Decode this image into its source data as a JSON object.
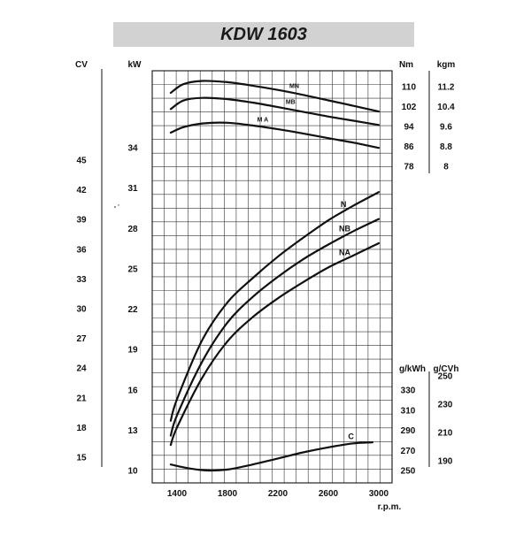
{
  "chart_data": {
    "type": "line",
    "title": "KDW 1603",
    "xlabel": "r.p.m.",
    "x_ticks": [
      1400,
      1800,
      2200,
      2600,
      3000
    ],
    "xlim": [
      1300,
      3000
    ],
    "axes": {
      "cv": {
        "unit": "CV",
        "ticks": [
          15,
          18,
          21,
          24,
          27,
          30,
          33,
          36,
          39,
          42,
          45
        ]
      },
      "kw": {
        "unit": "kW",
        "ticks": [
          10,
          13,
          16,
          19,
          22,
          25,
          28,
          31,
          34
        ]
      },
      "nm": {
        "unit": "Nm",
        "ticks": [
          78,
          86,
          94,
          102,
          110
        ]
      },
      "kgm": {
        "unit": "kgm",
        "ticks": [
          "8",
          "8.8",
          "9.6",
          "10.4",
          "11.2"
        ]
      },
      "gkwh": {
        "unit": "g/kWh",
        "ticks": [
          250,
          270,
          290,
          310,
          330
        ]
      },
      "gcvh": {
        "unit": "g/CVh",
        "ticks": [
          190,
          210,
          230,
          250
        ]
      }
    },
    "grid": true,
    "series": [
      {
        "name": "N",
        "axis": "kw",
        "label_rpm": 2720,
        "x": [
          1350,
          1400,
          1600,
          1800,
          2000,
          2200,
          2400,
          2600,
          2800,
          3000
        ],
        "values": [
          13.7,
          15.3,
          19.7,
          22.5,
          24.3,
          25.9,
          27.3,
          28.6,
          29.7,
          30.7
        ]
      },
      {
        "name": "NB",
        "axis": "kw",
        "label_rpm": 2730,
        "x": [
          1350,
          1400,
          1600,
          1800,
          2000,
          2200,
          2400,
          2600,
          2800,
          3000
        ],
        "values": [
          12.6,
          14.1,
          18.1,
          21.0,
          22.9,
          24.4,
          25.7,
          26.8,
          27.8,
          28.7
        ]
      },
      {
        "name": "NA",
        "axis": "kw",
        "label_rpm": 2730,
        "x": [
          1350,
          1400,
          1600,
          1800,
          2000,
          2200,
          2400,
          2600,
          2800,
          3000
        ],
        "values": [
          11.9,
          13.2,
          16.9,
          19.6,
          21.4,
          22.8,
          24.0,
          25.1,
          26.0,
          26.9
        ]
      },
      {
        "name": "MN",
        "axis": "nm",
        "label_rpm": 2330,
        "x": [
          1350,
          1450,
          1600,
          1800,
          2000,
          2200,
          2400,
          2600,
          2800,
          3000
        ],
        "values": [
          107.5,
          111.0,
          112.3,
          111.8,
          110.4,
          108.7,
          106.7,
          104.5,
          102.3,
          100.0
        ]
      },
      {
        "name": "MB",
        "axis": "nm",
        "label_rpm": 2300,
        "x": [
          1350,
          1450,
          1600,
          1800,
          2000,
          2200,
          2400,
          2600,
          2800,
          3000
        ],
        "values": [
          101.0,
          104.4,
          105.5,
          105.0,
          103.6,
          101.8,
          99.9,
          98.0,
          96.3,
          94.6
        ]
      },
      {
        "name": "M A",
        "axis": "nm",
        "label_rpm": 2080,
        "x": [
          1350,
          1450,
          1600,
          1800,
          2000,
          2200,
          2400,
          2600,
          2800,
          3000
        ],
        "values": [
          91.5,
          93.7,
          95.2,
          95.5,
          94.4,
          92.9,
          91.2,
          89.3,
          87.5,
          85.4
        ]
      },
      {
        "name": "C",
        "axis": "gkwh",
        "label_rpm": 2780,
        "x": [
          1350,
          1500,
          1650,
          1800,
          2000,
          2200,
          2400,
          2600,
          2800,
          2950
        ],
        "values": [
          256,
          252,
          250,
          251,
          256,
          262,
          268,
          273,
          277,
          278
        ]
      }
    ]
  }
}
